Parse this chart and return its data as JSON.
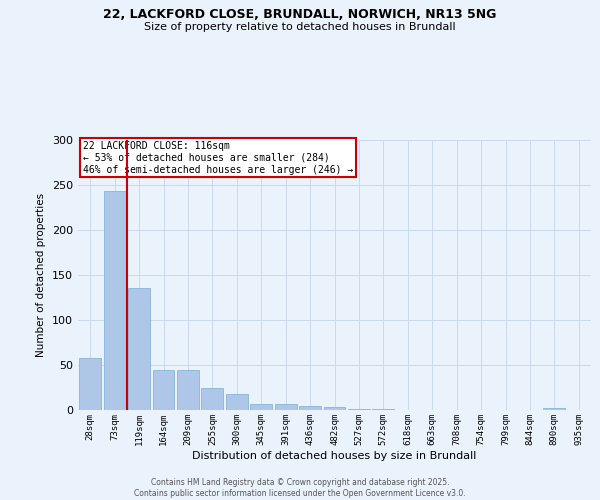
{
  "title_line1": "22, LACKFORD CLOSE, BRUNDALL, NORWICH, NR13 5NG",
  "title_line2": "Size of property relative to detached houses in Brundall",
  "xlabel": "Distribution of detached houses by size in Brundall",
  "ylabel": "Number of detached properties",
  "categories": [
    "28sqm",
    "73sqm",
    "119sqm",
    "164sqm",
    "209sqm",
    "255sqm",
    "300sqm",
    "345sqm",
    "391sqm",
    "436sqm",
    "482sqm",
    "527sqm",
    "572sqm",
    "618sqm",
    "663sqm",
    "708sqm",
    "754sqm",
    "799sqm",
    "844sqm",
    "890sqm",
    "935sqm"
  ],
  "values": [
    58,
    243,
    136,
    44,
    44,
    25,
    18,
    7,
    7,
    5,
    3,
    1,
    1,
    0,
    0,
    0,
    0,
    0,
    0,
    2,
    0
  ],
  "bar_color": "#aec6e8",
  "bar_edge_color": "#7aaed6",
  "grid_color": "#c8daf0",
  "background_color": "#eaf2fb",
  "vline_x": 1.5,
  "vline_color": "#cc0000",
  "annotation_text": "22 LACKFORD CLOSE: 116sqm\n← 53% of detached houses are smaller (284)\n46% of semi-detached houses are larger (246) →",
  "annotation_box_color": "#ffffff",
  "annotation_border_color": "#cc0000",
  "footer_line1": "Contains HM Land Registry data © Crown copyright and database right 2025.",
  "footer_line2": "Contains public sector information licensed under the Open Government Licence v3.0.",
  "ylim": [
    0,
    300
  ],
  "yticks": [
    0,
    50,
    100,
    150,
    200,
    250,
    300
  ]
}
